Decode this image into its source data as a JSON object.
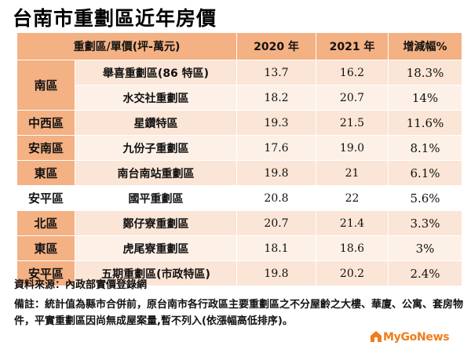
{
  "title": "台南市重劃區近年房價",
  "header": {
    "col_region_name": "重劃區/單價(坪-萬元)",
    "col_2020": "2020 年",
    "col_2021": "2021 年",
    "col_change": "增減幅%"
  },
  "rows": [
    {
      "region": "南區",
      "name": "舉喜重劃區(86 特區)",
      "v2020": "13.7",
      "v2021": "16.2",
      "change": "18.3%"
    },
    {
      "region": "",
      "name": "水交社重劃區",
      "v2020": "18.2",
      "v2021": "20.7",
      "change": "14%"
    },
    {
      "region": "中西區",
      "name": "星鑽特區",
      "v2020": "19.3",
      "v2021": "21.5",
      "change": "11.6%"
    },
    {
      "region": "安南區",
      "name": "九份子重劃區",
      "v2020": "17.6",
      "v2021": "19.0",
      "change": "8.1%"
    },
    {
      "region": "東區",
      "name": "南台南站重劃區",
      "v2020": "19.8",
      "v2021": "21",
      "change": "6.1%"
    },
    {
      "region": "安平區",
      "name": "國平重劃區",
      "v2020": "20.8",
      "v2021": "22",
      "change": "5.6%"
    },
    {
      "region": "北區",
      "name": "鄭仔寮重劃區",
      "v2020": "20.7",
      "v2021": "21.4",
      "change": "3.3%"
    },
    {
      "region": "東區",
      "name": "虎尾寮重劃區",
      "v2020": "18.1",
      "v2021": "18.6",
      "change": "3%"
    },
    {
      "region": "安平區",
      "name": "五期重劃區(市政特區)",
      "v2020": "19.8",
      "v2021": "20.2",
      "change": "2.4%"
    }
  ],
  "source": "資料來源：內政部實價登錄網",
  "note": "備註：統計值為縣市合併前，原台南市各行政區主要重劃區之不分屋齡之大樓、華廈、公寓、套房物件，平實重劃區因尚無成屋案量,暫不列入(依漲幅高低排序)。",
  "logo_text": "MyGoNews",
  "colors": {
    "header": "#f4b183",
    "cell": "#fbe5d6",
    "logo": "#f07c1a"
  }
}
